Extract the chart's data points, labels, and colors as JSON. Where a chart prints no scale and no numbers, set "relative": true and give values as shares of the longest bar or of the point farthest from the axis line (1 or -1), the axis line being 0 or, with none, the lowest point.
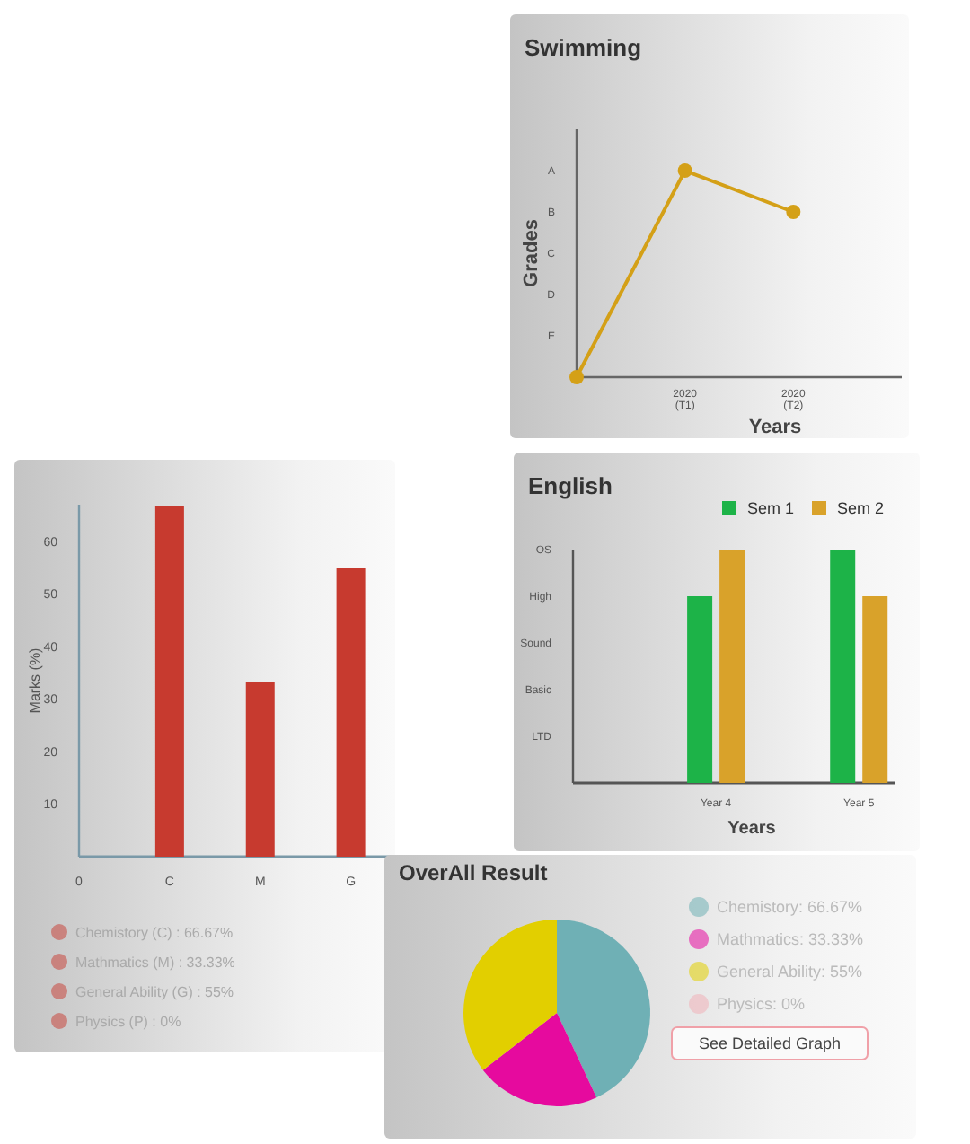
{
  "chart_data": [
    {
      "type": "line",
      "title": "Swimming",
      "xlabel": "Years",
      "ylabel": "Grades",
      "categories": [
        null,
        "2020 (T1)",
        "2020 (T2)"
      ],
      "series": [
        {
          "color": "#d4a017",
          "values": [
            0,
            1,
            0.8
          ]
        }
      ],
      "relative": true,
      "y_categories": [
        "A",
        "B",
        "C",
        "D",
        "E"
      ],
      "marker": "circle"
    },
    {
      "type": "bar",
      "ylabel": "Marks (%)",
      "categories": [
        "0",
        "C",
        "M",
        "G"
      ],
      "values": [
        0,
        66.67,
        33.33,
        55
      ],
      "color": "#c73a2f",
      "ylim": [
        0,
        67
      ],
      "yticks": [
        10,
        20,
        30,
        40,
        50,
        60
      ],
      "annotations": [
        "Chemistory (C) : 66.67%",
        "Mathmatics (M) : 33.33%",
        "General Ability (G) : 55%",
        "Physics (P) : 0%"
      ]
    },
    {
      "type": "bar",
      "title": "English",
      "xlabel": "Years",
      "categories": [
        "Year 4",
        "Year 5"
      ],
      "series": [
        {
          "name": "Sem 1",
          "color": "#1db348",
          "values": [
            0.8,
            1
          ]
        },
        {
          "name": "Sem 2",
          "color": "#d9a22a",
          "values": [
            1,
            0.8
          ]
        }
      ],
      "relative": true,
      "y_categories": [
        "OS",
        "High",
        "Sound",
        "Basic",
        "LTD"
      ],
      "legend": "top right"
    },
    {
      "type": "pie",
      "title": "OverAll Result",
      "categories": [
        "Chemistory: 66.67%",
        "Mathmatics: 33.33%",
        "General Ability: 55%",
        "Physics: 0%"
      ],
      "values": [
        66.67,
        33.33,
        55,
        0
      ],
      "colors": [
        "#6fb0b5",
        "#e60a9e",
        "#e2cf00",
        "#f0b0b8"
      ],
      "legend": "right",
      "annotations": [
        "See Detailed Graph"
      ]
    }
  ]
}
